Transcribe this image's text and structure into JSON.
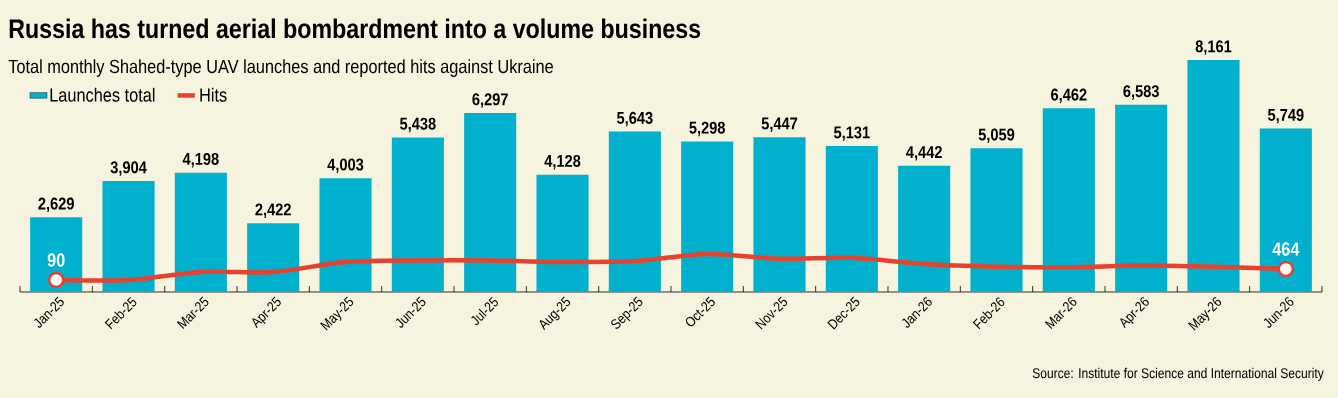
{
  "chart_data": {
    "type": "bar",
    "title": "Russia has turned aerial bombardment into a volume business",
    "subtitle": "Total monthly Shahed-type UAV launches and reported hits against Ukraine",
    "categories": [
      "Jan-25",
      "Feb-25",
      "Mar-25",
      "Apr-25",
      "May-25",
      "Jun-25",
      "Jul-25",
      "Aug-25",
      "Sep-25",
      "Oct-25",
      "Nov-25",
      "Dec-25",
      "Jan-26",
      "Feb-26",
      "Mar-26",
      "Apr-26",
      "May-26",
      "Jun-26"
    ],
    "series": [
      {
        "name": "Launches total",
        "color": "#00b0cc",
        "values": [
          2629,
          3904,
          4198,
          2422,
          4003,
          5438,
          6297,
          4128,
          5643,
          5298,
          5447,
          5131,
          4442,
          5059,
          6462,
          6583,
          8161,
          5749
        ],
        "value_labels": [
          "2,629",
          "3,904",
          "4,198",
          "2,422",
          "4,003",
          "5,438",
          "6,297",
          "4,128",
          "5,643",
          "5,298",
          "5,447",
          "5,131",
          "4,442",
          "5,059",
          "6,462",
          "6,583",
          "8,161",
          "5,749"
        ]
      },
      {
        "name": "Hits",
        "type": "line",
        "axis": "y2",
        "color": "#e8412c",
        "values": [
          90,
          90,
          360,
          360,
          700,
          750,
          750,
          700,
          730,
          970,
          810,
          840,
          630,
          540,
          520,
          580,
          540,
          464
        ],
        "value_labels": [
          "90",
          null,
          null,
          null,
          null,
          null,
          null,
          null,
          null,
          null,
          null,
          null,
          null,
          null,
          null,
          null,
          null,
          "464"
        ]
      }
    ],
    "tick_labels": "x",
    "legend": "top left",
    "grid": false,
    "annotations": [
      "Source: Institute for Science and International Security"
    ]
  }
}
